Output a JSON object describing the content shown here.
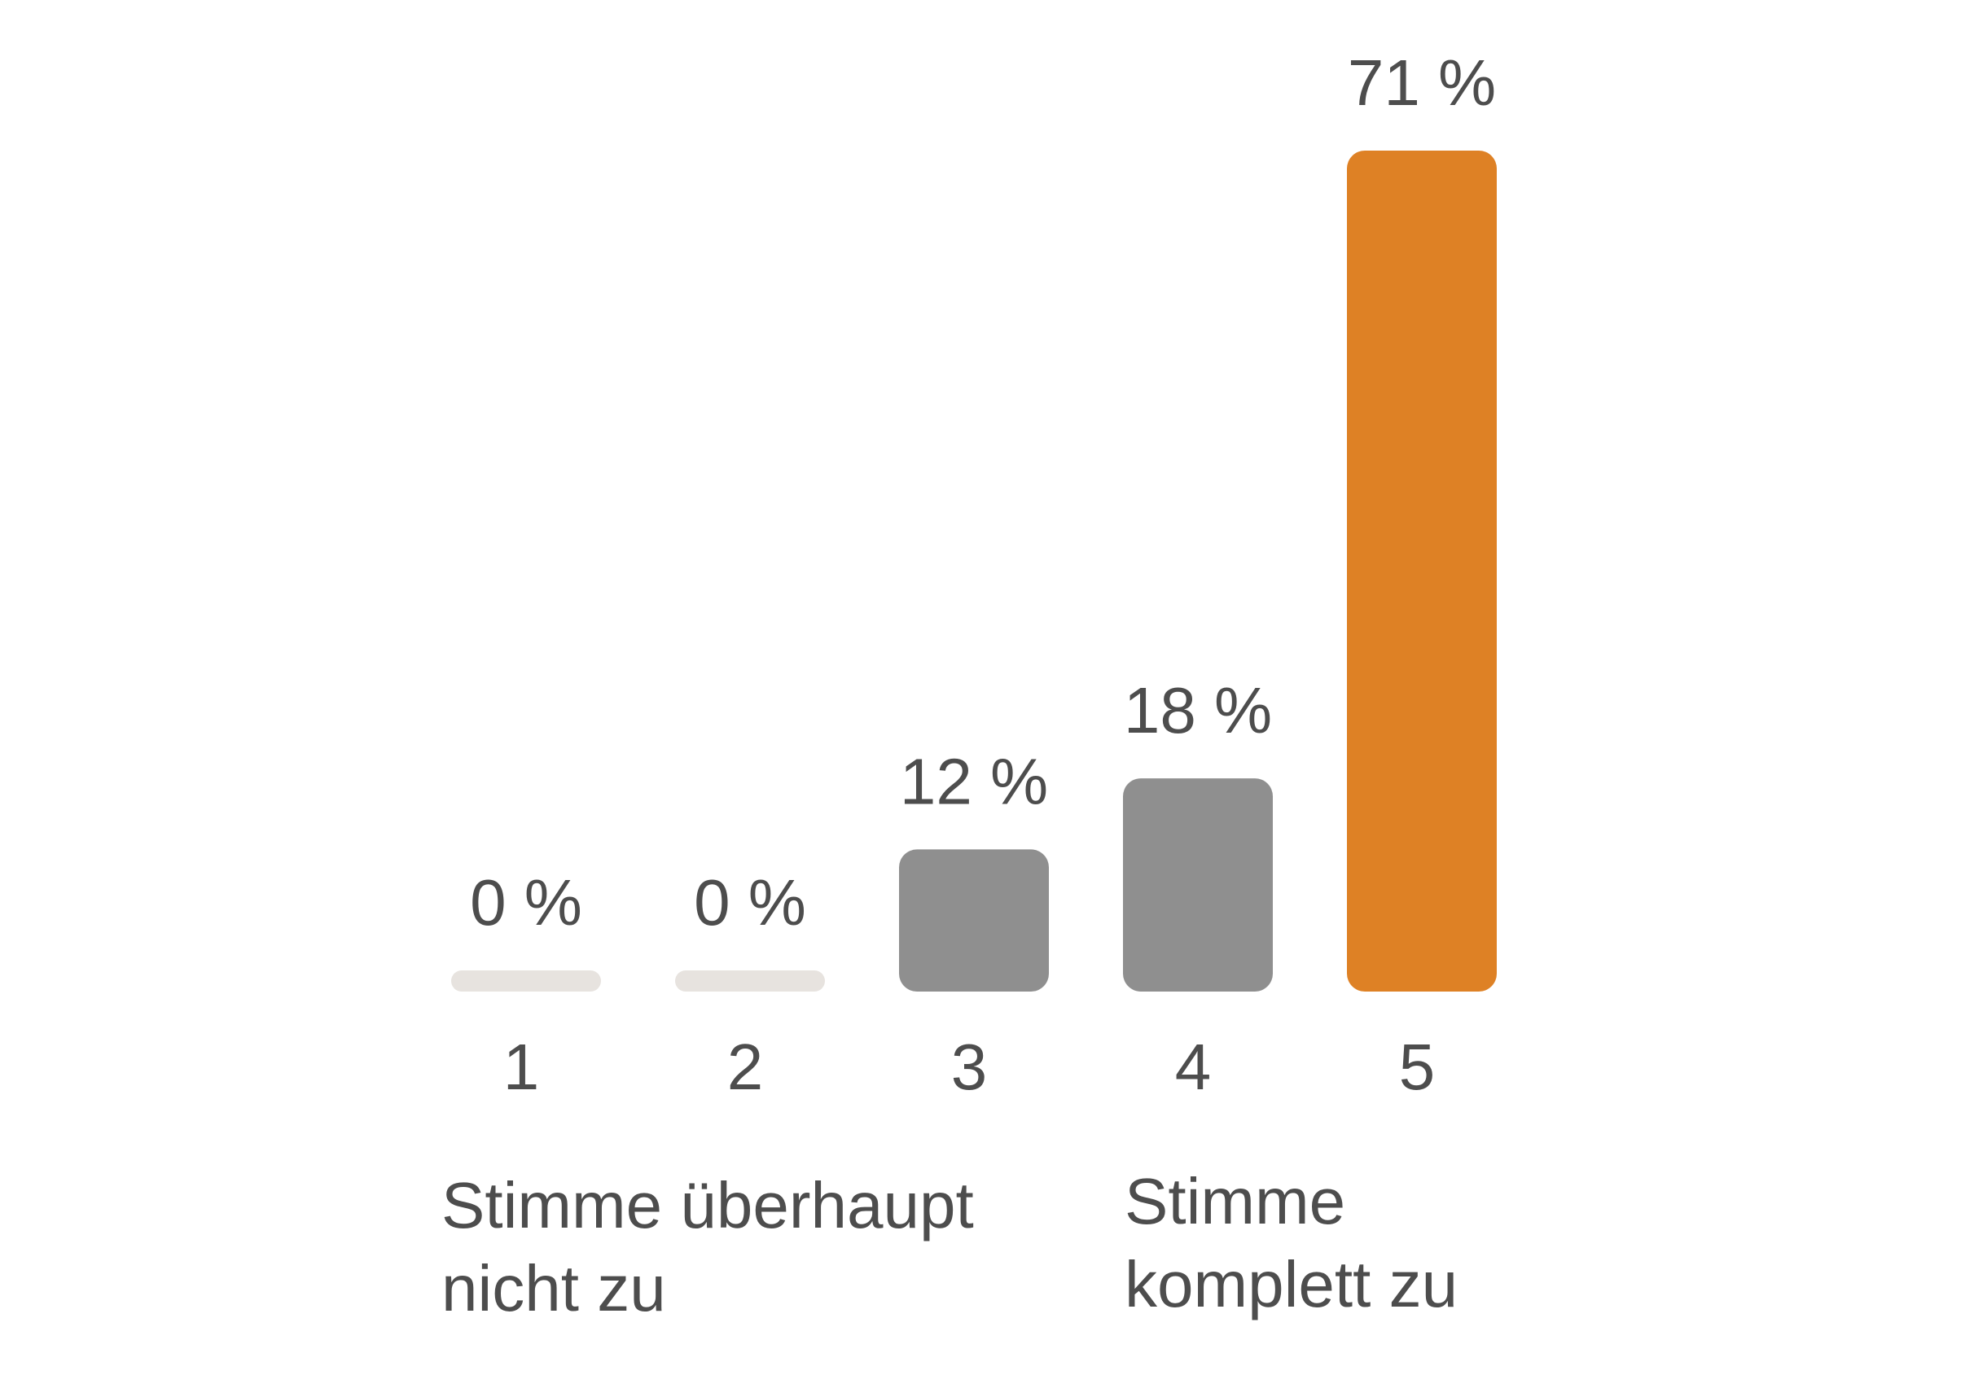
{
  "chart_data": {
    "type": "bar",
    "title": "",
    "xlabel": "",
    "ylabel": "",
    "categories": [
      "1",
      "2",
      "3",
      "4",
      "5"
    ],
    "values": [
      0,
      0,
      12,
      18,
      71
    ],
    "value_labels": [
      "0 %",
      "0 %",
      "12 %",
      "18 %",
      "71 %"
    ],
    "ylim": [
      0,
      71
    ],
    "grid": false,
    "legend": "none",
    "colors": {
      "highlight": "#DE8125",
      "default": "#8F8F8F",
      "zero": "#E7E3DF",
      "text": "#4D4D4D"
    },
    "highlight_index": 4,
    "scale_labels": {
      "left": [
        "Stimme überhaupt",
        "nicht zu"
      ],
      "right": [
        "Stimme",
        "komplett zu"
      ]
    }
  }
}
